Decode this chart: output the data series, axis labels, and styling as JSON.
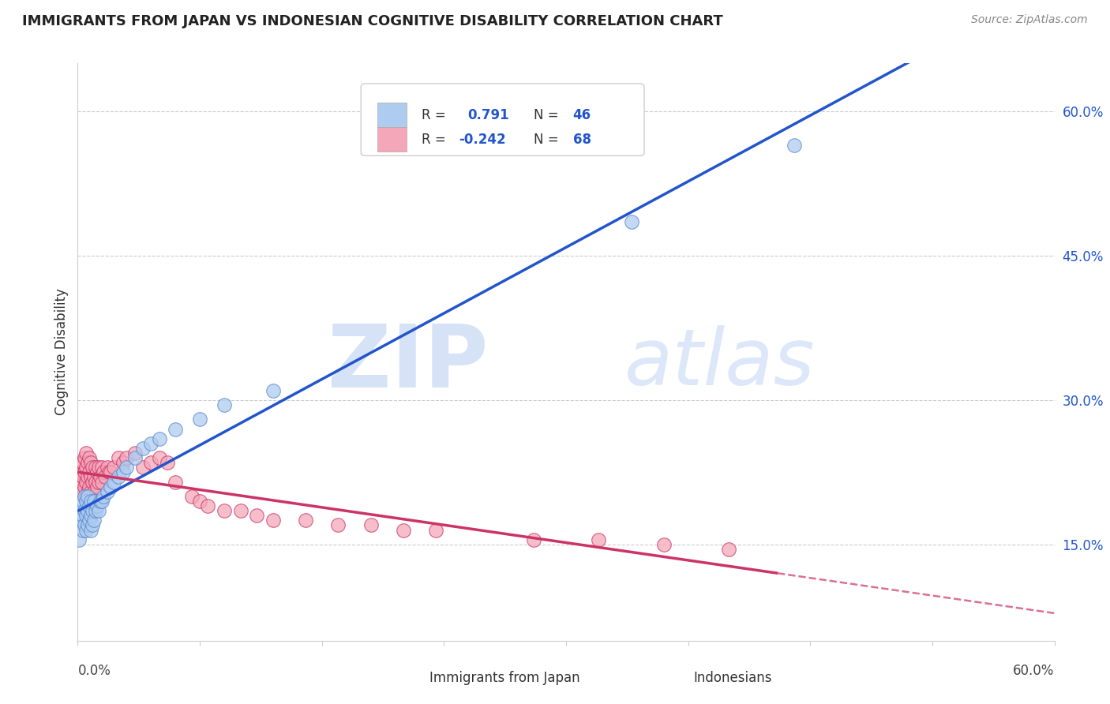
{
  "title": "IMMIGRANTS FROM JAPAN VS INDONESIAN COGNITIVE DISABILITY CORRELATION CHART",
  "source": "Source: ZipAtlas.com",
  "ylabel": "Cognitive Disability",
  "right_yticks": [
    "15.0%",
    "30.0%",
    "45.0%",
    "60.0%"
  ],
  "right_ytick_vals": [
    0.15,
    0.3,
    0.45,
    0.6
  ],
  "xmin": 0.0,
  "xmax": 0.6,
  "ymin": 0.05,
  "ymax": 0.65,
  "legend1_label_r": "R =  0.791",
  "legend1_label_n": "N = 46",
  "legend2_label_r": "R = -0.242",
  "legend2_label_n": "N = 68",
  "legend1_color": "#aecbf0",
  "legend2_color": "#f4a7b9",
  "line1_color": "#2255cc",
  "line2_color": "#cc3366",
  "watermark_zip": "ZIP",
  "watermark_atlas": "atlas",
  "dot1_color": "#aecbf0",
  "dot1_edge": "#5588cc",
  "dot2_color": "#f4a7b9",
  "dot2_edge": "#cc3366",
  "japan_x": [
    0.001,
    0.002,
    0.002,
    0.003,
    0.003,
    0.003,
    0.004,
    0.004,
    0.004,
    0.005,
    0.005,
    0.005,
    0.006,
    0.006,
    0.006,
    0.007,
    0.007,
    0.008,
    0.008,
    0.008,
    0.009,
    0.009,
    0.01,
    0.01,
    0.011,
    0.012,
    0.013,
    0.014,
    0.015,
    0.016,
    0.018,
    0.02,
    0.022,
    0.025,
    0.028,
    0.03,
    0.035,
    0.04,
    0.045,
    0.05,
    0.06,
    0.075,
    0.09,
    0.12,
    0.34,
    0.44
  ],
  "japan_y": [
    0.155,
    0.175,
    0.19,
    0.165,
    0.18,
    0.195,
    0.17,
    0.185,
    0.2,
    0.165,
    0.18,
    0.195,
    0.17,
    0.185,
    0.2,
    0.175,
    0.19,
    0.165,
    0.18,
    0.195,
    0.17,
    0.185,
    0.175,
    0.195,
    0.185,
    0.19,
    0.185,
    0.195,
    0.195,
    0.2,
    0.205,
    0.21,
    0.215,
    0.22,
    0.225,
    0.23,
    0.24,
    0.25,
    0.255,
    0.26,
    0.27,
    0.28,
    0.295,
    0.31,
    0.485,
    0.565
  ],
  "indonesia_x": [
    0.001,
    0.001,
    0.002,
    0.002,
    0.002,
    0.003,
    0.003,
    0.003,
    0.004,
    0.004,
    0.004,
    0.005,
    0.005,
    0.005,
    0.005,
    0.006,
    0.006,
    0.006,
    0.007,
    0.007,
    0.007,
    0.008,
    0.008,
    0.008,
    0.009,
    0.009,
    0.01,
    0.01,
    0.011,
    0.011,
    0.012,
    0.012,
    0.013,
    0.013,
    0.014,
    0.015,
    0.015,
    0.016,
    0.017,
    0.018,
    0.019,
    0.02,
    0.022,
    0.025,
    0.028,
    0.03,
    0.035,
    0.04,
    0.045,
    0.05,
    0.055,
    0.06,
    0.07,
    0.075,
    0.08,
    0.09,
    0.1,
    0.11,
    0.12,
    0.14,
    0.16,
    0.18,
    0.2,
    0.22,
    0.28,
    0.32,
    0.36,
    0.4
  ],
  "indonesia_y": [
    0.215,
    0.225,
    0.21,
    0.225,
    0.235,
    0.205,
    0.22,
    0.235,
    0.21,
    0.225,
    0.24,
    0.2,
    0.215,
    0.23,
    0.245,
    0.205,
    0.22,
    0.235,
    0.21,
    0.225,
    0.24,
    0.205,
    0.22,
    0.235,
    0.215,
    0.23,
    0.205,
    0.22,
    0.215,
    0.23,
    0.21,
    0.225,
    0.215,
    0.23,
    0.22,
    0.215,
    0.23,
    0.225,
    0.22,
    0.23,
    0.225,
    0.225,
    0.23,
    0.24,
    0.235,
    0.24,
    0.245,
    0.23,
    0.235,
    0.24,
    0.235,
    0.215,
    0.2,
    0.195,
    0.19,
    0.185,
    0.185,
    0.18,
    0.175,
    0.175,
    0.17,
    0.17,
    0.165,
    0.165,
    0.155,
    0.155,
    0.15,
    0.145
  ]
}
